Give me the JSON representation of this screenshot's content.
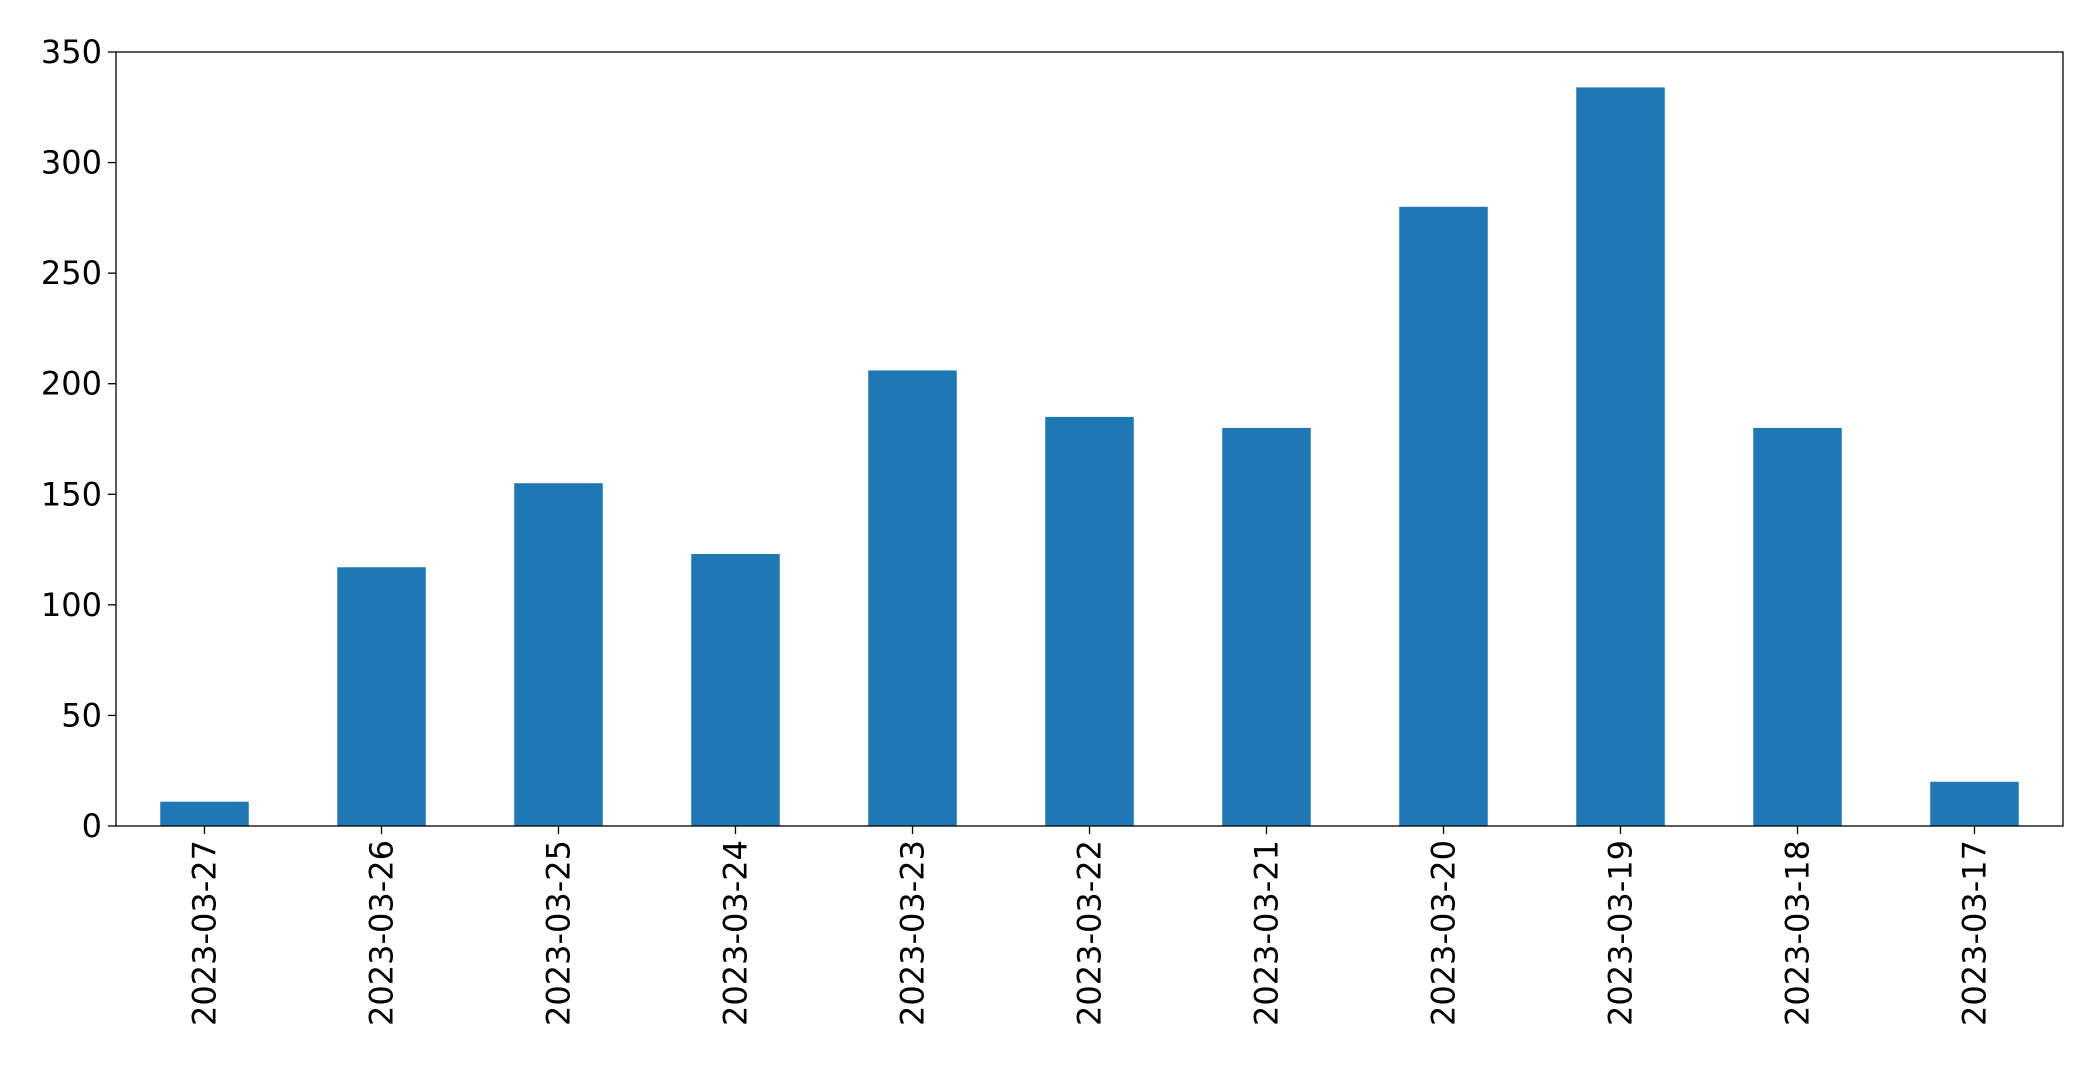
{
  "chart_data": {
    "type": "bar",
    "title": "",
    "xlabel": "",
    "ylabel": "",
    "categories": [
      "2023-03-27",
      "2023-03-26",
      "2023-03-25",
      "2023-03-24",
      "2023-03-23",
      "2023-03-22",
      "2023-03-21",
      "2023-03-20",
      "2023-03-19",
      "2023-03-18",
      "2023-03-17"
    ],
    "values": [
      11,
      117,
      155,
      123,
      206,
      185,
      180,
      280,
      334,
      180,
      20
    ],
    "ylim": [
      0,
      350
    ],
    "yticks": [
      0,
      50,
      100,
      150,
      200,
      250,
      300,
      350
    ],
    "ytick_labels": [
      "0",
      "50",
      "100",
      "150",
      "200",
      "250",
      "300",
      "350"
    ],
    "bar_color": "#1f77b4",
    "grid": false,
    "legend": "none"
  }
}
